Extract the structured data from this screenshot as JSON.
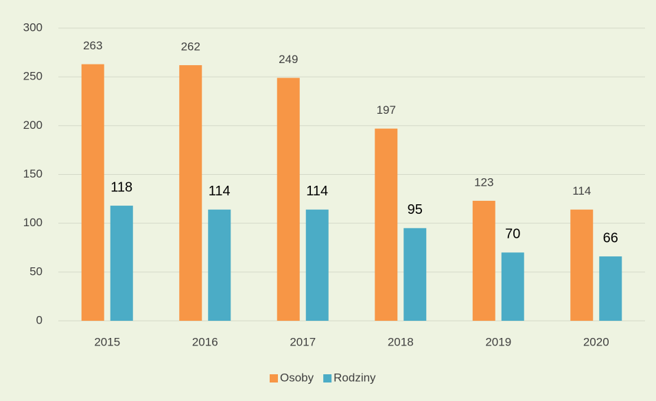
{
  "chart_data": {
    "type": "bar",
    "categories": [
      "2015",
      "2016",
      "2017",
      "2018",
      "2019",
      "2020"
    ],
    "series": [
      {
        "name": "Osoby",
        "color": "#f79646",
        "values": [
          263,
          262,
          249,
          197,
          123,
          114
        ]
      },
      {
        "name": "Rodziny",
        "color": "#4bacc6",
        "values": [
          118,
          114,
          114,
          95,
          70,
          66
        ]
      }
    ],
    "ylim": [
      0,
      300
    ],
    "yticks": [
      0,
      50,
      100,
      150,
      200,
      250,
      300
    ],
    "grid": true,
    "legend": "bottom"
  }
}
